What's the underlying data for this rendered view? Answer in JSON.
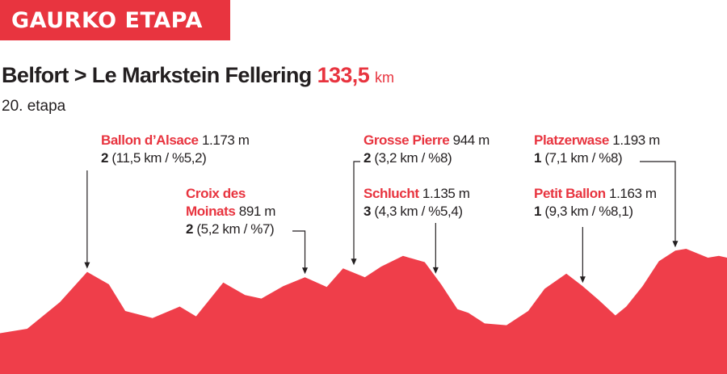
{
  "banner": "GAURKO ETAPA",
  "route": "Belfort > Le Markstein Fellering",
  "distance": "133,5",
  "distance_unit": "km",
  "stage": "20. etapa",
  "colors": {
    "accent": "#e8343f",
    "text": "#231f20",
    "profile_fill": "#ef3e4a"
  },
  "climbs": [
    {
      "name": "Ballon d’Alsace",
      "altitude": "1.173 m",
      "category": "2",
      "details": "(11,5 km / %5,2)"
    },
    {
      "name_line1": "Croix des",
      "name": "Moinats",
      "altitude": "891 m",
      "category": "2",
      "details": "(5,2 km / %7)"
    },
    {
      "name": "Grosse Pierre",
      "altitude": "944 m",
      "category": "2",
      "details": "(3,2 km / %8)"
    },
    {
      "name": "Schlucht",
      "altitude": "1.135 m",
      "category": "3",
      "details": "(4,3 km / %5,4)"
    },
    {
      "name": "Platzerwase",
      "altitude": "1.193 m",
      "category": "1",
      "details": "(7,1 km / %8)"
    },
    {
      "name": "Petit Ballon",
      "altitude": "1.163 m",
      "category": "1",
      "details": "(9,3 km / %8,1)"
    }
  ],
  "chart_data": {
    "type": "area",
    "x_unit": "km",
    "x_range": [
      0,
      133.5
    ],
    "x": [
      0,
      5,
      11,
      16,
      20,
      23,
      28,
      33,
      36,
      41,
      45,
      48,
      52,
      56,
      60,
      63,
      67,
      70,
      74,
      78,
      81,
      84,
      86,
      89,
      93,
      97,
      100,
      104,
      107,
      110,
      113,
      115,
      118,
      121,
      124,
      126,
      128,
      130,
      132,
      133.5
    ],
    "y": [
      0.05,
      0.1,
      0.4,
      0.74,
      0.6,
      0.3,
      0.22,
      0.35,
      0.24,
      0.62,
      0.48,
      0.44,
      0.58,
      0.68,
      0.57,
      0.78,
      0.68,
      0.8,
      0.92,
      0.85,
      0.6,
      0.32,
      0.28,
      0.16,
      0.14,
      0.3,
      0.55,
      0.72,
      0.58,
      0.42,
      0.25,
      0.35,
      0.58,
      0.86,
      0.98,
      1.0,
      0.95,
      0.9,
      0.92,
      0.9
    ],
    "peaks": [
      {
        "name": "Ballon d’Alsace",
        "x": 16,
        "altitude_m": 1173,
        "category": 2,
        "length_km": 11.5,
        "gradient_pct": 5.2
      },
      {
        "name": "Croix des Moinats",
        "x": 56,
        "altitude_m": 891,
        "category": 2,
        "length_km": 5.2,
        "gradient_pct": 7
      },
      {
        "name": "Grosse Pierre",
        "x": 63,
        "altitude_m": 944,
        "category": 2,
        "length_km": 3.2,
        "gradient_pct": 8
      },
      {
        "name": "Schlucht",
        "x": 80,
        "altitude_m": 1135,
        "category": 3,
        "length_km": 4.3,
        "gradient_pct": 5.4
      },
      {
        "name": "Petit Ballon",
        "x": 107,
        "altitude_m": 1163,
        "category": 1,
        "length_km": 9.3,
        "gradient_pct": 8.1
      },
      {
        "name": "Platzerwase",
        "x": 124,
        "altitude_m": 1193,
        "category": 1,
        "length_km": 7.1,
        "gradient_pct": 8
      }
    ]
  }
}
